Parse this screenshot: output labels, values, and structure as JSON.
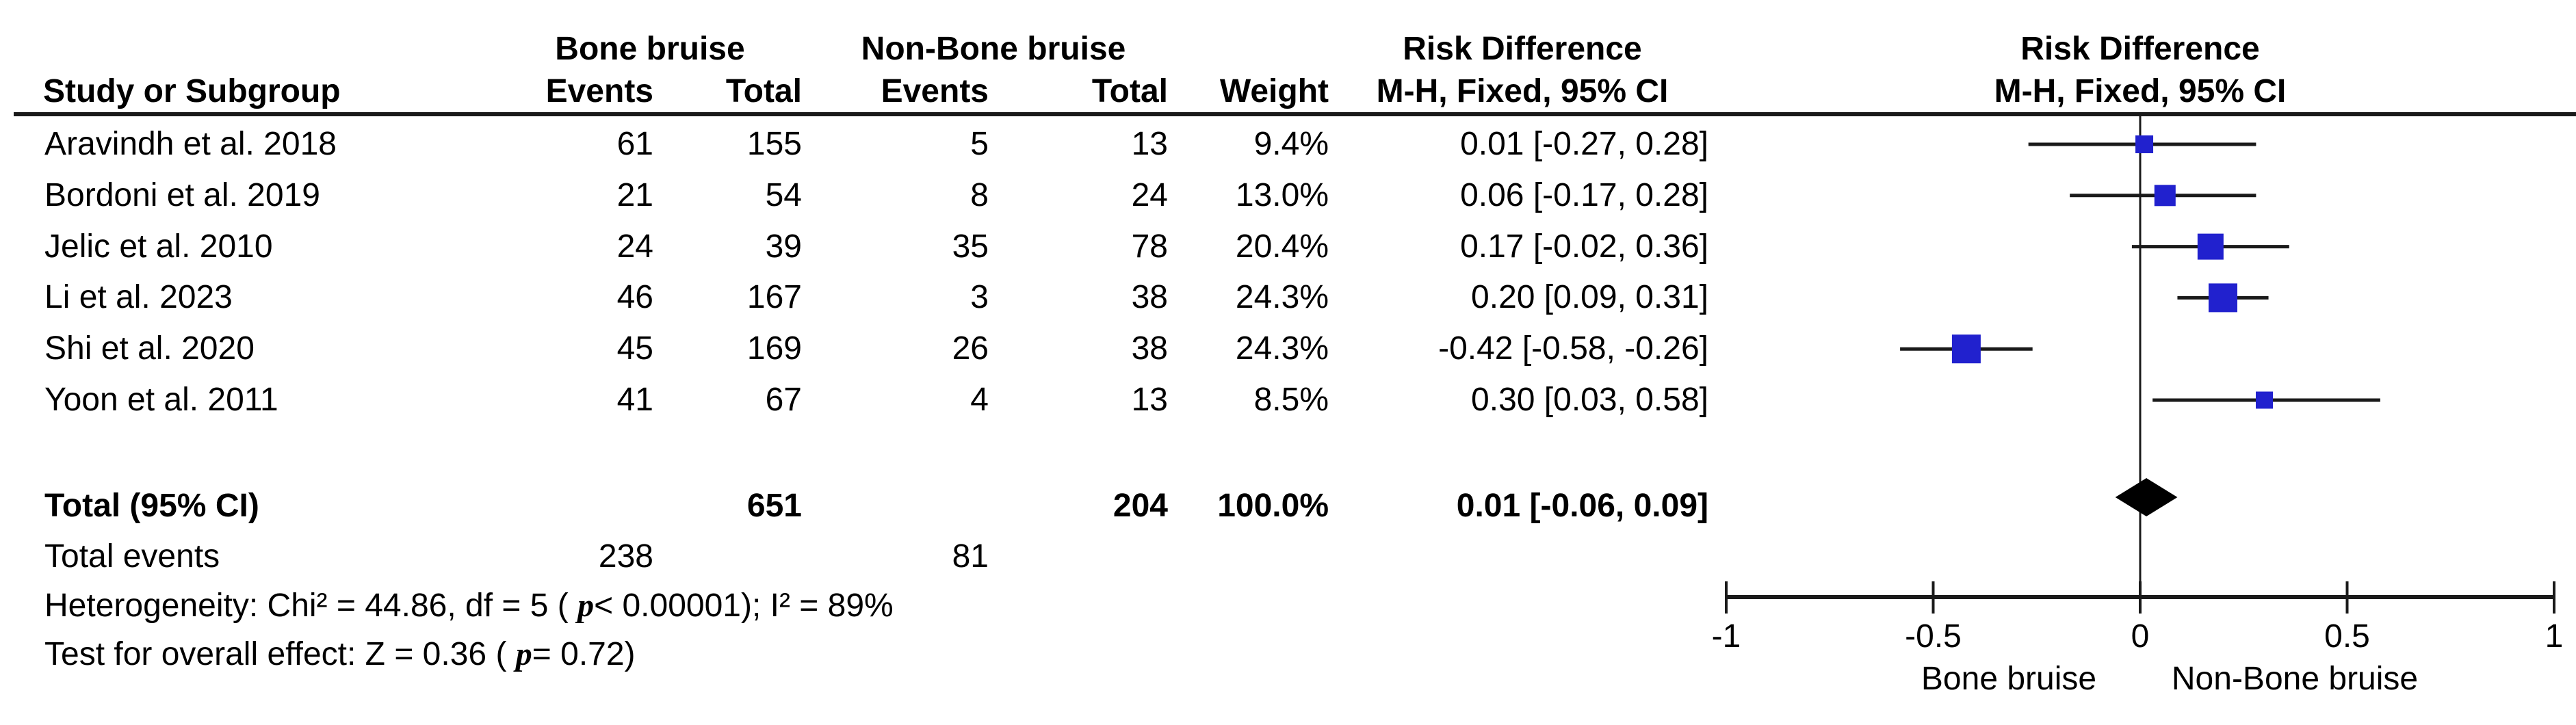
{
  "table": {
    "study_header": "Study or Subgroup",
    "events_header": "Events",
    "total_header": "Total",
    "weight_header": "Weight",
    "mh_header": "M-H, Fixed, 95% CI"
  },
  "chart_data": {
    "type": "forest",
    "effect_label": "Risk Difference",
    "method_label": "M-H, Fixed, 95% CI",
    "group_labels": {
      "events_group": "Bone bruise",
      "control_group": "Non-Bone bruise"
    },
    "studies": [
      {
        "study": "Aravindh et al. 2018",
        "bb_events": 61,
        "bb_total": 155,
        "nbb_events": 5,
        "nbb_total": 13,
        "weight": "9.4%",
        "weight_pct": 9.4,
        "estimate": 0.01,
        "ci_lower": -0.27,
        "ci_upper": 0.28,
        "ci_label": "0.01 [-0.27, 0.28]"
      },
      {
        "study": "Bordoni et al. 2019",
        "bb_events": 21,
        "bb_total": 54,
        "nbb_events": 8,
        "nbb_total": 24,
        "weight": "13.0%",
        "weight_pct": 13.0,
        "estimate": 0.06,
        "ci_lower": -0.17,
        "ci_upper": 0.28,
        "ci_label": "0.06 [-0.17, 0.28]"
      },
      {
        "study": "Jelic et al. 2010",
        "bb_events": 24,
        "bb_total": 39,
        "nbb_events": 35,
        "nbb_total": 78,
        "weight": "20.4%",
        "weight_pct": 20.4,
        "estimate": 0.17,
        "ci_lower": -0.02,
        "ci_upper": 0.36,
        "ci_label": "0.17 [-0.02, 0.36]"
      },
      {
        "study": "Li et al. 2023",
        "bb_events": 46,
        "bb_total": 167,
        "nbb_events": 3,
        "nbb_total": 38,
        "weight": "24.3%",
        "weight_pct": 24.3,
        "estimate": 0.2,
        "ci_lower": 0.09,
        "ci_upper": 0.31,
        "ci_label": "0.20 [0.09, 0.31]"
      },
      {
        "study": "Shi et al. 2020",
        "bb_events": 45,
        "bb_total": 169,
        "nbb_events": 26,
        "nbb_total": 38,
        "weight": "24.3%",
        "weight_pct": 24.3,
        "estimate": -0.42,
        "ci_lower": -0.58,
        "ci_upper": -0.26,
        "ci_label": "-0.42 [-0.58, -0.26]"
      },
      {
        "study": "Yoon et al. 2011",
        "bb_events": 41,
        "bb_total": 67,
        "nbb_events": 4,
        "nbb_total": 13,
        "weight": "8.5%",
        "weight_pct": 8.5,
        "estimate": 0.3,
        "ci_lower": 0.03,
        "ci_upper": 0.58,
        "ci_label": "0.30 [0.03, 0.58]"
      }
    ],
    "total": {
      "label": "Total (95% CI)",
      "bb_total": 651,
      "nbb_total": 204,
      "weight": "100.0%",
      "estimate": 0.01,
      "ci_lower": -0.06,
      "ci_upper": 0.09,
      "ci_label": "0.01 [-0.06, 0.09]"
    },
    "total_events": {
      "label": "Total events",
      "bb_events": 238,
      "nbb_events": 81
    },
    "heterogeneity": {
      "prefix": "Heterogeneity: Chi² = 44.86, df = 5 ( ",
      "p_symbol": "p",
      "suffix": "< 0.00001); I² = 89%"
    },
    "overall_effect": {
      "prefix": "Test for overall effect: Z = 0.36 ( ",
      "p_symbol": "p",
      "suffix": "= 0.72)"
    },
    "axis": {
      "xmin": -1,
      "xmax": 1,
      "ticks": [
        -1,
        -0.5,
        0,
        0.5,
        1
      ],
      "tick_labels": [
        "-1",
        "-0.5",
        "0",
        "0.5",
        "1"
      ],
      "left_label": "Bone bruise",
      "right_label": "Non-Bone bruise"
    },
    "colors": {
      "marker_blue": "#2121CE",
      "diamond_black": "#000000",
      "line": "#1a1a1a"
    }
  }
}
